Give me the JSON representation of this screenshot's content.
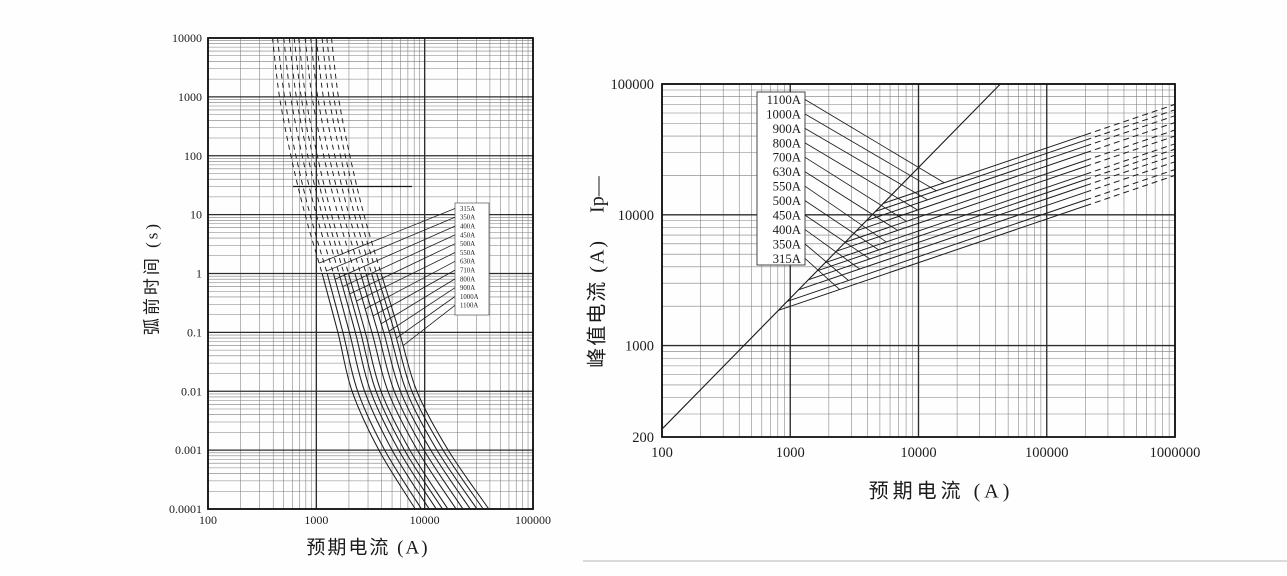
{
  "figure": {
    "background": "#fefefe",
    "ink": "#1c1c1c",
    "grid_minor": "#7d7d7d",
    "grid_major": "#2c2c2c",
    "border": "#111111",
    "legend_fill": "#ffffff"
  },
  "chart_data": [
    {
      "type": "line",
      "title": "",
      "xlabel": "预期电流 (A)",
      "ylabel": "弧前时间 (s)",
      "x_scale": "log",
      "y_scale": "log",
      "grid": true,
      "xlim": [
        100,
        100000
      ],
      "ylim": [
        0.0001,
        10000
      ],
      "x_ticks": [
        100,
        1000,
        10000,
        100000
      ],
      "x_tick_labels": [
        "100",
        "1000",
        "10000",
        "100000"
      ],
      "y_ticks": [
        10000,
        1000,
        100,
        10,
        1,
        0.1,
        0.01,
        0.001,
        0.0001
      ],
      "y_tick_labels": [
        "10000",
        "1000",
        "100",
        "10",
        "1",
        "0.1",
        "0.01",
        "0.001",
        "0.0001"
      ],
      "legend_labels": [
        "315A",
        "350A",
        "400A",
        "450A",
        "500A",
        "550A",
        "630A",
        "710A",
        "800A",
        "900A",
        "1000A",
        "1100A"
      ],
      "dashed_above_t": 1,
      "series": [
        {
          "name": "315A",
          "points": [
            [
              394,
              10000
            ],
            [
              457,
              1000
            ],
            [
              583,
              100
            ],
            [
              788,
              10
            ],
            [
              1130,
              1
            ],
            [
              1580,
              0.1
            ],
            [
              2140,
              0.01
            ],
            [
              3780,
              0.001
            ],
            [
              8190,
              0.0001
            ]
          ]
        },
        {
          "name": "350A",
          "points": [
            [
              438,
              10000
            ],
            [
              508,
              1000
            ],
            [
              648,
              100
            ],
            [
              875,
              10
            ],
            [
              1260,
              1
            ],
            [
              1760,
              0.1
            ],
            [
              2410,
              0.01
            ],
            [
              4280,
              0.001
            ],
            [
              9340,
              0.0001
            ]
          ]
        },
        {
          "name": "400A",
          "points": [
            [
              500,
              10000
            ],
            [
              580,
              1000
            ],
            [
              740,
              100
            ],
            [
              1000,
              10
            ],
            [
              1440,
              1
            ],
            [
              2020,
              0.1
            ],
            [
              2790,
              0.01
            ],
            [
              5010,
              0.001
            ],
            [
              11000,
              0.0001
            ]
          ]
        },
        {
          "name": "450A",
          "points": [
            [
              563,
              10000
            ],
            [
              653,
              1000
            ],
            [
              833,
              100
            ],
            [
              1130,
              10
            ],
            [
              1620,
              1
            ],
            [
              2290,
              0.1
            ],
            [
              3170,
              0.01
            ],
            [
              5760,
              0.001
            ],
            [
              12800,
              0.0001
            ]
          ]
        },
        {
          "name": "500A",
          "points": [
            [
              625,
              10000
            ],
            [
              725,
              1000
            ],
            [
              925,
              100
            ],
            [
              1250,
              10
            ],
            [
              1800,
              1
            ],
            [
              2560,
              0.1
            ],
            [
              3560,
              0.01
            ],
            [
              6520,
              0.001
            ],
            [
              14600,
              0.0001
            ]
          ]
        },
        {
          "name": "550A",
          "points": [
            [
              688,
              10000
            ],
            [
              798,
              1000
            ],
            [
              1020,
              100
            ],
            [
              1380,
              10
            ],
            [
              1980,
              1
            ],
            [
              2830,
              0.1
            ],
            [
              3950,
              0.01
            ],
            [
              7300,
              0.001
            ],
            [
              16400,
              0.0001
            ]
          ]
        },
        {
          "name": "630A",
          "points": [
            [
              788,
              10000
            ],
            [
              914,
              1000
            ],
            [
              1170,
              100
            ],
            [
              1580,
              10
            ],
            [
              2270,
              1
            ],
            [
              3260,
              0.1
            ],
            [
              4590,
              0.01
            ],
            [
              8560,
              0.001
            ],
            [
              19500,
              0.0001
            ]
          ]
        },
        {
          "name": "710A",
          "points": [
            [
              888,
              10000
            ],
            [
              1030,
              1000
            ],
            [
              1310,
              100
            ],
            [
              1780,
              10
            ],
            [
              2560,
              1
            ],
            [
              3700,
              0.1
            ],
            [
              5240,
              0.01
            ],
            [
              9860,
              0.001
            ],
            [
              22600,
              0.0001
            ]
          ]
        },
        {
          "name": "800A",
          "points": [
            [
              1000,
              10000
            ],
            [
              1160,
              1000
            ],
            [
              1480,
              100
            ],
            [
              2000,
              10
            ],
            [
              2880,
              1
            ],
            [
              4190,
              0.1
            ],
            [
              5970,
              0.01
            ],
            [
              11400,
              0.001
            ],
            [
              26300,
              0.0001
            ]
          ]
        },
        {
          "name": "900A",
          "points": [
            [
              1130,
              10000
            ],
            [
              1310,
              1000
            ],
            [
              1670,
              100
            ],
            [
              2250,
              10
            ],
            [
              3240,
              1
            ],
            [
              4740,
              0.1
            ],
            [
              6800,
              0.01
            ],
            [
              13000,
              0.001
            ],
            [
              30400,
              0.0001
            ]
          ]
        },
        {
          "name": "1000A",
          "points": [
            [
              1250,
              10000
            ],
            [
              1450,
              1000
            ],
            [
              1850,
              100
            ],
            [
              2500,
              10
            ],
            [
              3600,
              1
            ],
            [
              5300,
              0.1
            ],
            [
              7630,
              0.01
            ],
            [
              14800,
              0.001
            ],
            [
              34700,
              0.0001
            ]
          ]
        },
        {
          "name": "1100A",
          "points": [
            [
              1380,
              10000
            ],
            [
              1600,
              1000
            ],
            [
              2040,
              100
            ],
            [
              2750,
              10
            ],
            [
              3960,
              1
            ],
            [
              5850,
              0.1
            ],
            [
              8480,
              0.01
            ],
            [
              16500,
              0.001
            ],
            [
              39100,
              0.0001
            ]
          ]
        }
      ]
    },
    {
      "type": "line",
      "title": "",
      "xlabel": "预期电流 (A)",
      "ylabel": "峰值电流 (A)",
      "ylabel_suffix": "Ip—",
      "x_scale": "log",
      "y_scale": "log",
      "grid": true,
      "xlim": [
        100,
        1000000
      ],
      "ylim": [
        200,
        100000
      ],
      "x_ticks": [
        100,
        1000,
        10000,
        100000,
        1000000
      ],
      "x_tick_labels": [
        "100",
        "1000",
        "10000",
        "100000",
        "1000000"
      ],
      "y_ticks": [
        100000,
        10000,
        1000,
        200
      ],
      "y_tick_labels": [
        "100000",
        "10000",
        "1000",
        "200"
      ],
      "legend_labels": [
        "1100A",
        "1000A",
        "900A",
        "800A",
        "700A",
        "630A",
        "550A",
        "500A",
        "450A",
        "400A",
        "350A",
        "315A"
      ],
      "reference_line": {
        "points": [
          [
            100,
            230
          ],
          [
            43500,
            100000
          ]
        ]
      },
      "dashed_beyond_x": 200000,
      "series": [
        {
          "name": "1100A",
          "points": [
            [
              5290,
              12200
            ],
            [
              1000000,
              69800
            ]
          ]
        },
        {
          "name": "1000A",
          "points": [
            [
              4590,
              10600
            ],
            [
              1000000,
              63500
            ]
          ]
        },
        {
          "name": "900A",
          "points": [
            [
              3920,
              9020
            ],
            [
              1000000,
              57200
            ]
          ]
        },
        {
          "name": "800A",
          "points": [
            [
              3280,
              7550
            ],
            [
              1000000,
              50800
            ]
          ]
        },
        {
          "name": "700A",
          "points": [
            [
              2690,
              6180
            ],
            [
              1000000,
              44500
            ]
          ]
        },
        {
          "name": "630A",
          "points": [
            [
              2290,
              5270
            ],
            [
              1000000,
              40000
            ]
          ]
        },
        {
          "name": "550A",
          "points": [
            [
              1870,
              4300
            ],
            [
              1000000,
              34900
            ]
          ]
        },
        {
          "name": "500A",
          "points": [
            [
              1630,
              3740
            ],
            [
              1000000,
              31800
            ]
          ]
        },
        {
          "name": "450A",
          "points": [
            [
              1390,
              3190
            ],
            [
              1000000,
              28600
            ]
          ]
        },
        {
          "name": "400A",
          "points": [
            [
              1160,
              2670
            ],
            [
              1000000,
              25400
            ]
          ]
        },
        {
          "name": "350A",
          "points": [
            [
              948,
              2180
            ],
            [
              1000000,
              22200
            ]
          ]
        },
        {
          "name": "315A",
          "points": [
            [
              810,
              1860
            ],
            [
              1000000,
              20000
            ]
          ]
        }
      ]
    }
  ]
}
